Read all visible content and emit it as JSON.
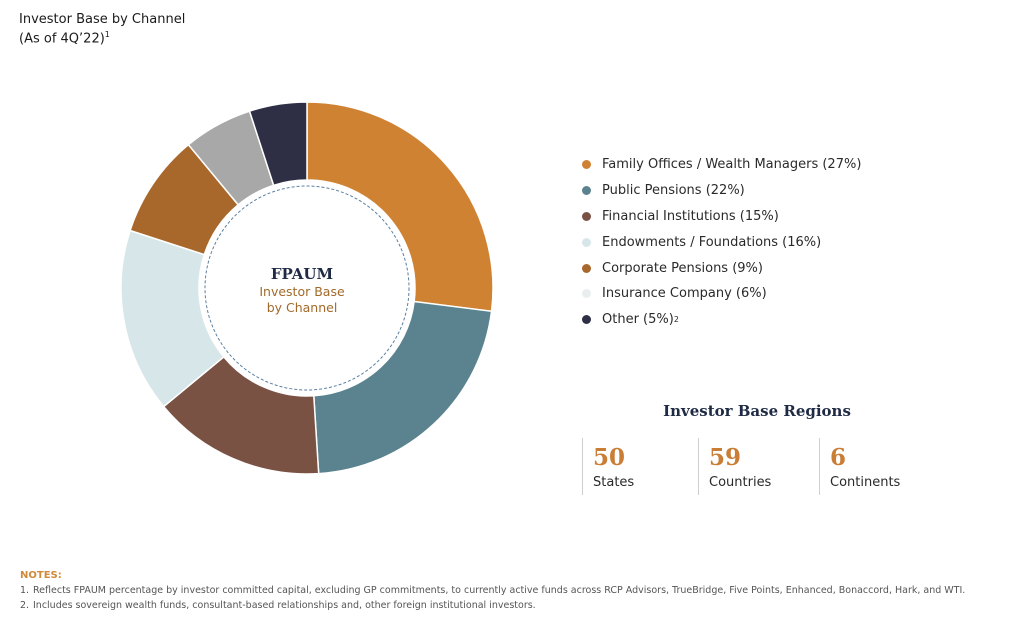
{
  "header": {
    "title": "Investor Base by Channel",
    "subtitle": "(As of 4Q’22)",
    "subtitle_sup": "1"
  },
  "center": {
    "title": "FPAUM",
    "line1": "Investor Base",
    "line2": "by Channel"
  },
  "chart_data": {
    "type": "pie",
    "donut": true,
    "title": "Investor Base by Channel",
    "series": [
      {
        "name": "Family Offices / Wealth Managers",
        "value": 27,
        "color": "#d08233"
      },
      {
        "name": "Public Pensions",
        "value": 22,
        "color": "#5a838f"
      },
      {
        "name": "Financial Institutions",
        "value": 15,
        "color": "#7a5244"
      },
      {
        "name": "Endowments / Foundations",
        "value": 16,
        "color": "#d7e6e9"
      },
      {
        "name": "Corporate Pensions",
        "value": 9,
        "color": "#a8672b"
      },
      {
        "name": "Insurance Company",
        "value": 6,
        "color": "#a8a8a8"
      },
      {
        "name": "Other",
        "value": 5,
        "color": "#2e2f45"
      }
    ]
  },
  "legend": [
    {
      "label": "Family Offices / Wealth Managers (27%)",
      "color": "#d08233",
      "sup": ""
    },
    {
      "label": "Public Pensions (22%)",
      "color": "#5a838f",
      "sup": ""
    },
    {
      "label": "Financial Institutions (15%)",
      "color": "#7a5244",
      "sup": ""
    },
    {
      "label": "Endowments / Foundations (16%)",
      "color": "#d7e6e9",
      "sup": ""
    },
    {
      "label": "Corporate Pensions (9%)",
      "color": "#a8672b",
      "sup": ""
    },
    {
      "label": "Insurance Company (6%)",
      "color": "#e8eeef",
      "sup": ""
    },
    {
      "label": "Other (5%)",
      "color": "#2e2f45",
      "sup": "2"
    }
  ],
  "regions": {
    "title": "Investor Base Regions",
    "stats": [
      {
        "value": "50",
        "label": "States"
      },
      {
        "value": "59",
        "label": "Countries"
      },
      {
        "value": "6",
        "label": "Continents"
      }
    ]
  },
  "notes": {
    "title": "NOTES:",
    "items": [
      {
        "num": "1.",
        "text": "Reflects FPAUM percentage by investor committed capital, excluding GP commitments, to currently active funds across RCP Advisors, TrueBridge, Five Points, Enhanced, Bonaccord, Hark, and WTI."
      },
      {
        "num": "2.",
        "text": "Includes sovereign wealth funds, consultant-based relationships and, other foreign institutional investors."
      }
    ]
  }
}
